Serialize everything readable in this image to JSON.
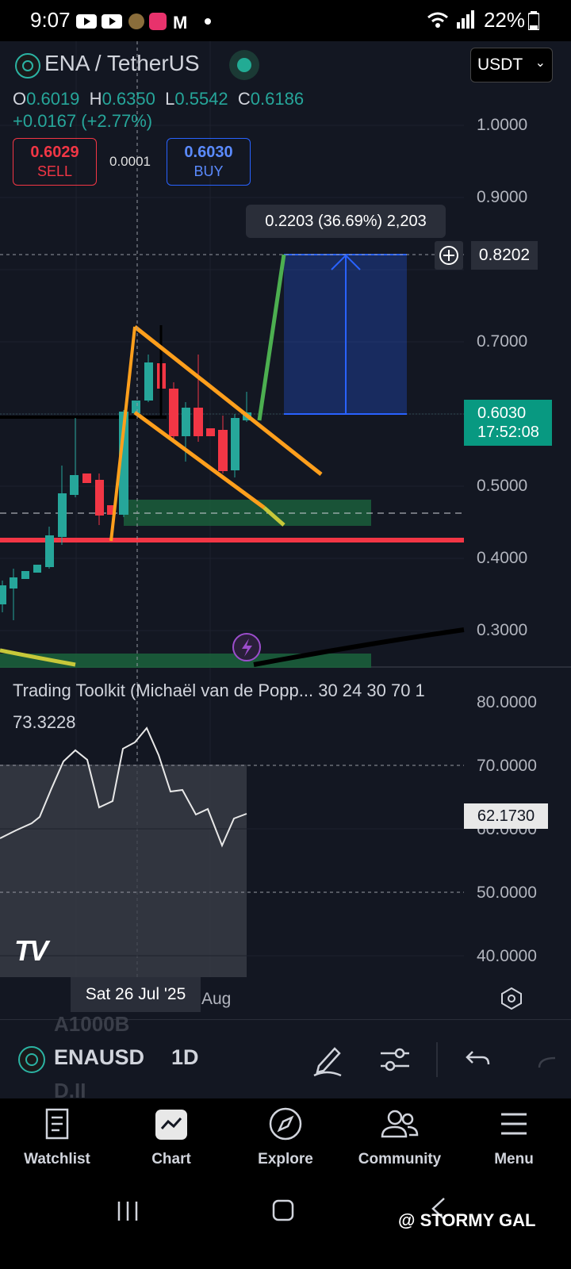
{
  "status_bar": {
    "time": "9:07",
    "battery": "22%"
  },
  "header": {
    "symbol": "ENA / TetherUS",
    "currency": "USDT",
    "ohlc": {
      "o_label": "O",
      "o": "0.6019",
      "h_label": "H",
      "h": "0.6350",
      "l_label": "L",
      "l": "0.5542",
      "c_label": "C",
      "c": "0.6186"
    },
    "change": "+0.0167 (+2.77%)",
    "sell": {
      "price": "0.6029",
      "label": "SELL"
    },
    "spread": "0.0001",
    "buy": {
      "price": "0.6030",
      "label": "BUY"
    }
  },
  "chart": {
    "tooltip": "0.2203 (36.69%) 2,203",
    "crosshair_price": "0.8202",
    "price_tag": {
      "price": "0.6030",
      "countdown": "17:52:08"
    },
    "price_axis": [
      "1.0000",
      "0.9000",
      "0.7000",
      "0.5000",
      "0.4000",
      "0.3000"
    ]
  },
  "oscillator": {
    "title": "Trading Toolkit (Michaël van de Popp... 30 24 30 70 1",
    "value": "73.3228",
    "current_tag": "62.1730",
    "axis": [
      "80.0000",
      "70.0000",
      "50.0000",
      "40.0000"
    ],
    "date_label": "Sat 26 Jul '25",
    "date_label_2": "Aug"
  },
  "toolbar": {
    "symbol": "ENAUSD",
    "timeframe": "1D",
    "ghost_top": "A1000B",
    "ghost_bottom": "D.II"
  },
  "nav": {
    "items": [
      {
        "label": "Watchlist",
        "icon": "watchlist-icon"
      },
      {
        "label": "Chart",
        "icon": "chart-icon"
      },
      {
        "label": "Explore",
        "icon": "compass-icon"
      },
      {
        "label": "Community",
        "icon": "community-icon"
      },
      {
        "label": "Menu",
        "icon": "menu-icon"
      }
    ]
  },
  "watermark": "@ STORMY GAL",
  "colors": {
    "background": "#131722",
    "up": "#26a69a",
    "down": "#f23645",
    "accent": "#2962ff",
    "pattern": "#ff9f1c"
  }
}
